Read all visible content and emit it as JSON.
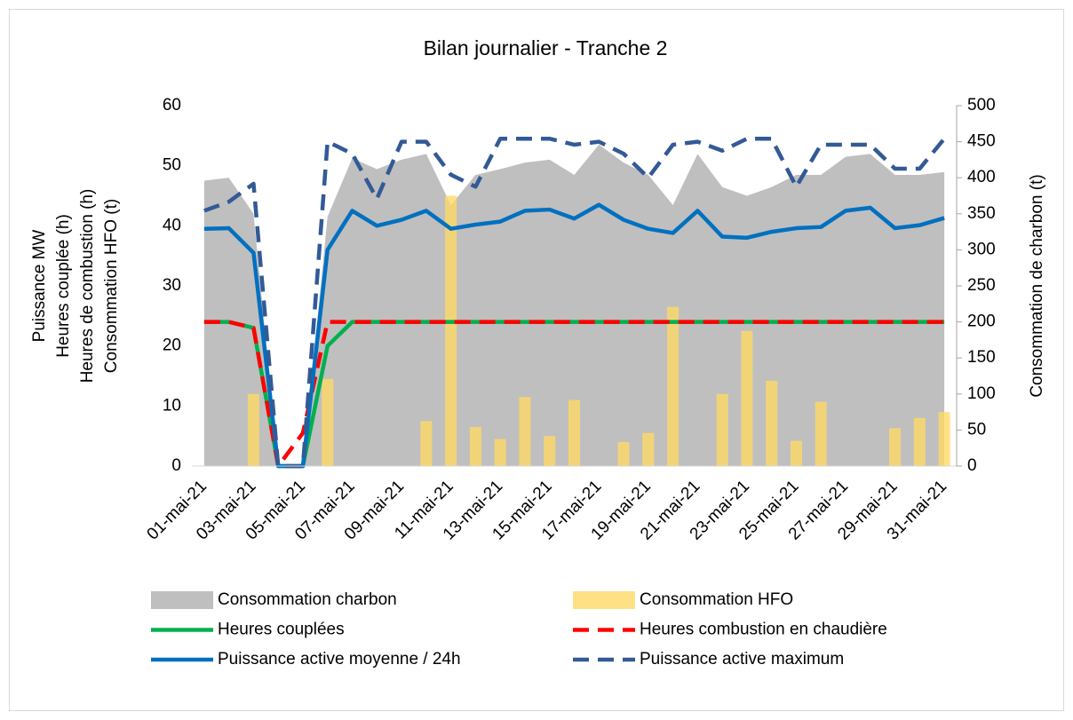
{
  "chart_data": {
    "type": "combo",
    "title": "Bilan journalier - Tranche 2",
    "y_label": [
      "Puissance MW",
      "Heures couplée (h)",
      "Heures de combustion (h)",
      "Consommation HFO (t)"
    ],
    "y2_label": "Consommation de charbon (t)",
    "categories": [
      "01-mai-21",
      null,
      "03-mai-21",
      null,
      "05-mai-21",
      null,
      "07-mai-21",
      null,
      "09-mai-21",
      null,
      "11-mai-21",
      null,
      "13-mai-21",
      null,
      "15-mai-21",
      null,
      "17-mai-21",
      null,
      "19-mai-21",
      null,
      "21-mai-21",
      null,
      "23-mai-21",
      null,
      "25-mai-21",
      null,
      "27-mai-21",
      null,
      "29-mai-21",
      null,
      "31-mai-21"
    ],
    "ylim": [
      0,
      60
    ],
    "yticks": [
      0,
      10,
      20,
      30,
      40,
      50,
      60
    ],
    "y2lim": [
      0,
      500
    ],
    "y2ticks": [
      0,
      50,
      100,
      150,
      200,
      250,
      300,
      350,
      400,
      450,
      500
    ],
    "series": [
      {
        "name": "Consommation charbon",
        "kind": "area",
        "axis": "y2",
        "color": "#bfbfbf",
        "values": [
          396,
          400,
          350,
          0,
          0,
          346,
          427,
          412,
          425,
          433,
          362,
          404,
          412,
          421,
          425,
          404,
          446,
          421,
          404,
          362,
          433,
          387,
          375,
          387,
          404,
          404,
          429,
          433,
          404,
          404,
          408
        ]
      },
      {
        "name": "Consommation HFO",
        "kind": "bar",
        "color": "#ffd966",
        "values": [
          0,
          0,
          12,
          0,
          0,
          14.5,
          0,
          0,
          0,
          7.5,
          45,
          6.5,
          4.5,
          11.5,
          5,
          11,
          0,
          4,
          5.5,
          26.5,
          0,
          12,
          22.5,
          14.2,
          4.2,
          10.7,
          0,
          0,
          6.3,
          8,
          9
        ]
      },
      {
        "name": "Heures couplées",
        "kind": "line",
        "color": "#00b050",
        "values": [
          24,
          24,
          23,
          0,
          0,
          20,
          24,
          24,
          24,
          24,
          24,
          24,
          24,
          24,
          24,
          24,
          24,
          24,
          24,
          24,
          24,
          24,
          24,
          24,
          24,
          24,
          24,
          24,
          24,
          24,
          24
        ]
      },
      {
        "name": "Heures combustion en chaudière",
        "kind": "line",
        "dashed": true,
        "color": "#ff0000",
        "values": [
          24,
          24,
          23,
          0,
          5.5,
          24,
          24,
          24,
          24,
          24,
          24,
          24,
          24,
          24,
          24,
          24,
          24,
          24,
          24,
          24,
          24,
          24,
          24,
          24,
          24,
          24,
          24,
          24,
          24,
          24,
          24
        ]
      },
      {
        "name": "Puissance active moyenne / 24h",
        "kind": "line",
        "color": "#0070c0",
        "values": [
          39.5,
          39.6,
          35.5,
          0,
          0,
          36,
          42.5,
          40,
          41,
          42.5,
          39.5,
          40.2,
          40.7,
          42.5,
          42.7,
          41.2,
          43.5,
          41,
          39.5,
          38.8,
          42.5,
          38.2,
          38,
          39,
          39.6,
          39.8,
          42.5,
          43,
          39.6,
          40.1,
          41.3
        ]
      },
      {
        "name": "Puissance active maximum",
        "kind": "line",
        "dashed": true,
        "color": "#335a96",
        "values": [
          42.5,
          44,
          47,
          0,
          0,
          54,
          52,
          44.5,
          54,
          54,
          48.5,
          46.5,
          54.5,
          54.5,
          54.5,
          53.5,
          54,
          52,
          48,
          53.5,
          54,
          52.5,
          54.5,
          54.5,
          46.5,
          53.5,
          53.5,
          53.5,
          49.5,
          49.5,
          54.5
        ]
      }
    ]
  }
}
